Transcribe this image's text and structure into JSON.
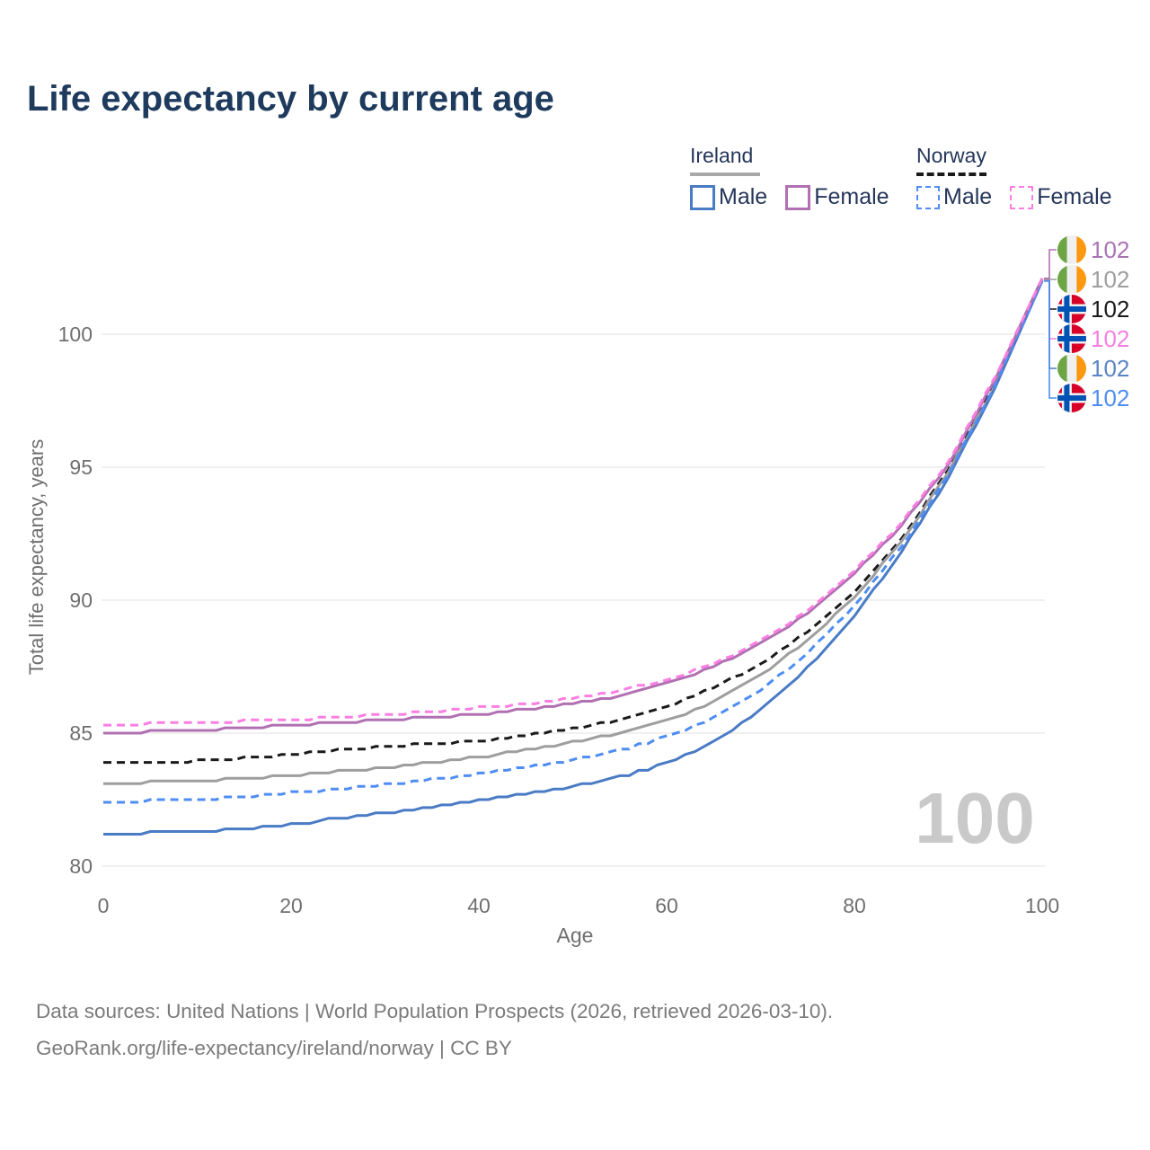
{
  "title": "Life expectancy by current age",
  "watermark_age": "100",
  "legend": {
    "groups": [
      {
        "country": "Ireland",
        "line_style": "solid",
        "underline_color": "#a8a8a8",
        "items": [
          {
            "label": "Male",
            "color": "#4a7bc5"
          },
          {
            "label": "Female",
            "color": "#b070b2"
          }
        ]
      },
      {
        "country": "Norway",
        "line_style": "dashed",
        "underline_color": "#1a1a1a",
        "items": [
          {
            "label": "Male",
            "color": "#4f8df2"
          },
          {
            "label": "Female",
            "color": "#fb7ee3"
          }
        ]
      }
    ]
  },
  "chart_data": {
    "type": "line",
    "title": "Life expectancy by current age",
    "xlabel": "Age",
    "ylabel": "Total life expectancy, years",
    "x_ticks": [
      0,
      20,
      40,
      60,
      80,
      100
    ],
    "y_ticks": [
      80,
      85,
      90,
      95,
      100
    ],
    "xlim": [
      0,
      100
    ],
    "ylim": [
      80,
      102.5
    ],
    "grid": "horizontal",
    "legend_position": "top-right",
    "ages": [
      0,
      5,
      10,
      15,
      20,
      25,
      30,
      35,
      40,
      45,
      50,
      55,
      60,
      65,
      70,
      75,
      80,
      85,
      90,
      95,
      100
    ],
    "series": [
      {
        "name": "Norway Total",
        "country": "norway",
        "flag": "norway",
        "line": "dashed",
        "color": "#1a1a1a",
        "label_color": "#1a1a1a",
        "end_label": "102",
        "end_row": 2,
        "values": [
          83.85,
          83.9,
          83.95,
          84.05,
          84.2,
          84.35,
          84.5,
          84.6,
          84.7,
          84.9,
          85.15,
          85.5,
          86.0,
          86.7,
          87.6,
          88.8,
          90.3,
          92.3,
          94.9,
          98.2,
          102.05
        ]
      },
      {
        "name": "Ireland Total",
        "country": "ireland",
        "flag": "ireland",
        "line": "solid",
        "color": "#9e9e9e",
        "label_color": "#9e9e9e",
        "end_label": "102",
        "end_row": 1,
        "values": [
          83.1,
          83.15,
          83.2,
          83.3,
          83.4,
          83.55,
          83.7,
          83.9,
          84.1,
          84.35,
          84.65,
          85.0,
          85.45,
          86.15,
          87.15,
          88.5,
          90.1,
          92.2,
          94.8,
          98.1,
          102.05
        ]
      },
      {
        "name": "Ireland Male",
        "country": "ireland",
        "flag": "ireland",
        "line": "solid",
        "color": "#4a7bc5",
        "label_color": "#5b84c4",
        "end_label": "102",
        "end_row": 4,
        "values": [
          81.2,
          81.25,
          81.3,
          81.4,
          81.55,
          81.8,
          82.0,
          82.2,
          82.45,
          82.7,
          83.0,
          83.35,
          83.85,
          84.65,
          85.85,
          87.45,
          89.4,
          91.8,
          94.6,
          98.0,
          102.0
        ]
      },
      {
        "name": "Norway Male",
        "country": "norway",
        "flag": "norway",
        "line": "dashed",
        "color": "#4f8df2",
        "label_color": "#4f8df2",
        "end_label": "102",
        "end_row": 5,
        "values": [
          82.4,
          82.45,
          82.5,
          82.6,
          82.75,
          82.9,
          83.05,
          83.25,
          83.45,
          83.7,
          84.0,
          84.35,
          84.85,
          85.6,
          86.6,
          88.0,
          89.8,
          92.0,
          94.7,
          98.1,
          102.0
        ]
      },
      {
        "name": "Ireland Female",
        "country": "ireland",
        "flag": "ireland",
        "line": "solid",
        "color": "#b070b2",
        "label_color": "#a973b5",
        "end_label": "102",
        "end_row": 0,
        "values": [
          85.0,
          85.05,
          85.1,
          85.2,
          85.3,
          85.4,
          85.5,
          85.6,
          85.7,
          85.9,
          86.1,
          86.4,
          86.85,
          87.5,
          88.35,
          89.5,
          91.0,
          92.8,
          95.1,
          98.3,
          102.1
        ]
      },
      {
        "name": "Norway Female",
        "country": "norway",
        "flag": "norway",
        "line": "dashed",
        "color": "#fb7ee3",
        "label_color": "#f77fe0",
        "end_label": "102",
        "end_row": 3,
        "values": [
          85.3,
          85.35,
          85.4,
          85.45,
          85.5,
          85.6,
          85.7,
          85.8,
          85.95,
          86.1,
          86.3,
          86.6,
          87.0,
          87.6,
          88.45,
          89.6,
          91.1,
          92.9,
          95.2,
          98.4,
          102.1
        ]
      }
    ],
    "flag_colors": {
      "ireland": {
        "green": "#6da544",
        "white": "#f0f0f0",
        "orange": "#ff9811"
      },
      "norway": {
        "red": "#d80027",
        "blue": "#0052b4",
        "white": "#f0f0f0"
      }
    }
  },
  "footer": {
    "line1": "Data sources: United Nations | World Population Prospects (2026, retrieved 2026-03-10).",
    "line2": "GeoRank.org/life-expectancy/ireland/norway | CC BY"
  }
}
